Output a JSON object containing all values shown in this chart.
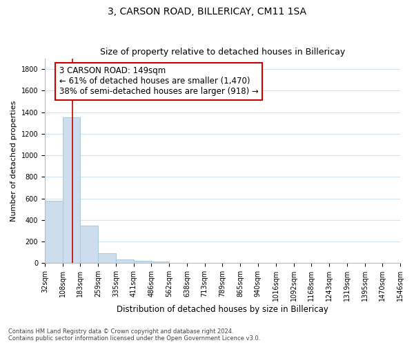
{
  "title": "3, CARSON ROAD, BILLERICAY, CM11 1SA",
  "subtitle": "Size of property relative to detached houses in Billericay",
  "xlabel": "Distribution of detached houses by size in Billericay",
  "ylabel": "Number of detached properties",
  "bin_edges": [
    32,
    108,
    183,
    259,
    335,
    411,
    486,
    562,
    638,
    713,
    789,
    865,
    940,
    1016,
    1092,
    1168,
    1243,
    1319,
    1395,
    1470,
    1546
  ],
  "bar_heights": [
    580,
    1350,
    350,
    95,
    35,
    20,
    15,
    0,
    0,
    0,
    0,
    0,
    0,
    0,
    0,
    0,
    0,
    0,
    0,
    0
  ],
  "bar_color": "#ccdded",
  "bar_edgecolor": "#aaccdd",
  "bar_linewidth": 0.8,
  "vline_x": 149,
  "vline_color": "#cc0000",
  "vline_linewidth": 1.2,
  "ylim": [
    0,
    1900
  ],
  "yticks": [
    0,
    200,
    400,
    600,
    800,
    1000,
    1200,
    1400,
    1600,
    1800
  ],
  "annotation_lines": [
    "3 CARSON ROAD: 149sqm",
    "← 61% of detached houses are smaller (1,470)",
    "38% of semi-detached houses are larger (918) →"
  ],
  "annotation_fontsize": 8.5,
  "annotation_boxcolor": "white",
  "annotation_edgecolor": "#cc0000",
  "footnote1": "Contains HM Land Registry data © Crown copyright and database right 2024.",
  "footnote2": "Contains public sector information licensed under the Open Government Licence v3.0.",
  "bg_color": "#ffffff",
  "grid_color": "#d0e4f0",
  "title_fontsize": 10,
  "subtitle_fontsize": 9,
  "xlabel_fontsize": 8.5,
  "ylabel_fontsize": 8,
  "tick_fontsize": 7
}
